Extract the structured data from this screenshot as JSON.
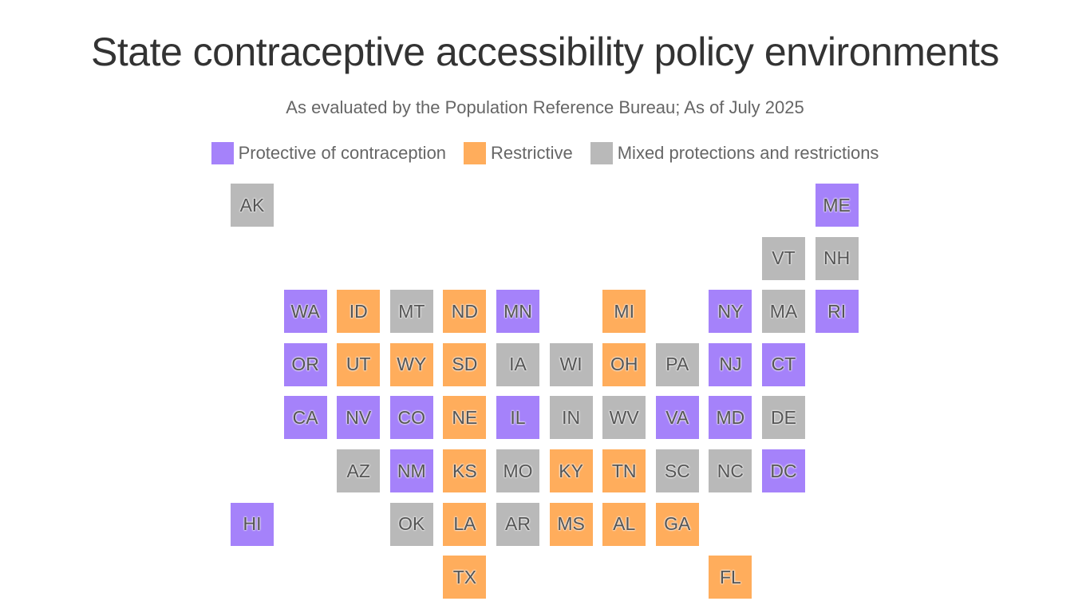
{
  "title": "State contraceptive accessibility policy environments",
  "subtitle": "As evaluated by the Population Reference Bureau; As of July 2025",
  "legend": [
    {
      "key": "P",
      "label": "Protective of contraception",
      "color": "#a582fa"
    },
    {
      "key": "R",
      "label": "Restrictive",
      "color": "#ffad5c"
    },
    {
      "key": "M",
      "label": "Mixed protections and restrictions",
      "color": "#b9b9b9"
    }
  ],
  "states": [
    {
      "abbr": "AK",
      "cat": "M"
    },
    {
      "abbr": "ME",
      "cat": "P"
    },
    {
      "abbr": "VT",
      "cat": "M"
    },
    {
      "abbr": "NH",
      "cat": "M"
    },
    {
      "abbr": "WA",
      "cat": "P"
    },
    {
      "abbr": "ID",
      "cat": "R"
    },
    {
      "abbr": "MT",
      "cat": "M"
    },
    {
      "abbr": "ND",
      "cat": "R"
    },
    {
      "abbr": "MN",
      "cat": "P"
    },
    {
      "abbr": "MI",
      "cat": "R"
    },
    {
      "abbr": "NY",
      "cat": "P"
    },
    {
      "abbr": "MA",
      "cat": "M"
    },
    {
      "abbr": "RI",
      "cat": "P"
    },
    {
      "abbr": "OR",
      "cat": "P"
    },
    {
      "abbr": "UT",
      "cat": "R"
    },
    {
      "abbr": "WY",
      "cat": "R"
    },
    {
      "abbr": "SD",
      "cat": "R"
    },
    {
      "abbr": "IA",
      "cat": "M"
    },
    {
      "abbr": "WI",
      "cat": "M"
    },
    {
      "abbr": "OH",
      "cat": "R"
    },
    {
      "abbr": "PA",
      "cat": "M"
    },
    {
      "abbr": "NJ",
      "cat": "P"
    },
    {
      "abbr": "CT",
      "cat": "P"
    },
    {
      "abbr": "CA",
      "cat": "P"
    },
    {
      "abbr": "NV",
      "cat": "P"
    },
    {
      "abbr": "CO",
      "cat": "P"
    },
    {
      "abbr": "NE",
      "cat": "R"
    },
    {
      "abbr": "IL",
      "cat": "P"
    },
    {
      "abbr": "IN",
      "cat": "M"
    },
    {
      "abbr": "WV",
      "cat": "M"
    },
    {
      "abbr": "VA",
      "cat": "P"
    },
    {
      "abbr": "MD",
      "cat": "P"
    },
    {
      "abbr": "DE",
      "cat": "M"
    },
    {
      "abbr": "AZ",
      "cat": "M"
    },
    {
      "abbr": "NM",
      "cat": "P"
    },
    {
      "abbr": "KS",
      "cat": "R"
    },
    {
      "abbr": "MO",
      "cat": "M"
    },
    {
      "abbr": "KY",
      "cat": "R"
    },
    {
      "abbr": "TN",
      "cat": "R"
    },
    {
      "abbr": "SC",
      "cat": "M"
    },
    {
      "abbr": "NC",
      "cat": "M"
    },
    {
      "abbr": "DC",
      "cat": "P"
    },
    {
      "abbr": "HI",
      "cat": "P"
    },
    {
      "abbr": "OK",
      "cat": "M"
    },
    {
      "abbr": "LA",
      "cat": "R"
    },
    {
      "abbr": "AR",
      "cat": "M"
    },
    {
      "abbr": "MS",
      "cat": "R"
    },
    {
      "abbr": "AL",
      "cat": "R"
    },
    {
      "abbr": "GA",
      "cat": "R"
    },
    {
      "abbr": "TX",
      "cat": "R"
    },
    {
      "abbr": "FL",
      "cat": "R"
    }
  ]
}
